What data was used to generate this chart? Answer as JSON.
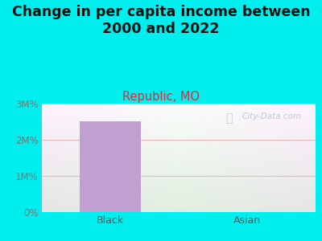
{
  "title": "Change in per capita income between\n2000 and 2022",
  "subtitle": "Republic, MO",
  "categories": [
    "Black",
    "Asian"
  ],
  "values": [
    2500000,
    8000
  ],
  "bar_color": "#c0a0d0",
  "background_color": "#00EEEE",
  "title_fontsize": 12.5,
  "subtitle_fontsize": 10.5,
  "subtitle_color": "#cc3344",
  "title_color": "#111111",
  "tick_color": "#777777",
  "axis_label_color": "#555555",
  "yticks": [
    0,
    1000000,
    2000000,
    3000000
  ],
  "ytick_labels": [
    "0%",
    "1M%",
    "2M%",
    "3M%"
  ],
  "ylim": [
    0,
    3000000
  ],
  "watermark": "City-Data.com",
  "watermark_color": "#b0c0d0",
  "grid_color": "#f0b8b8",
  "plot_bg_colors": [
    "#c8e8b8",
    "#f0f5ec"
  ],
  "bar_width": 0.45
}
